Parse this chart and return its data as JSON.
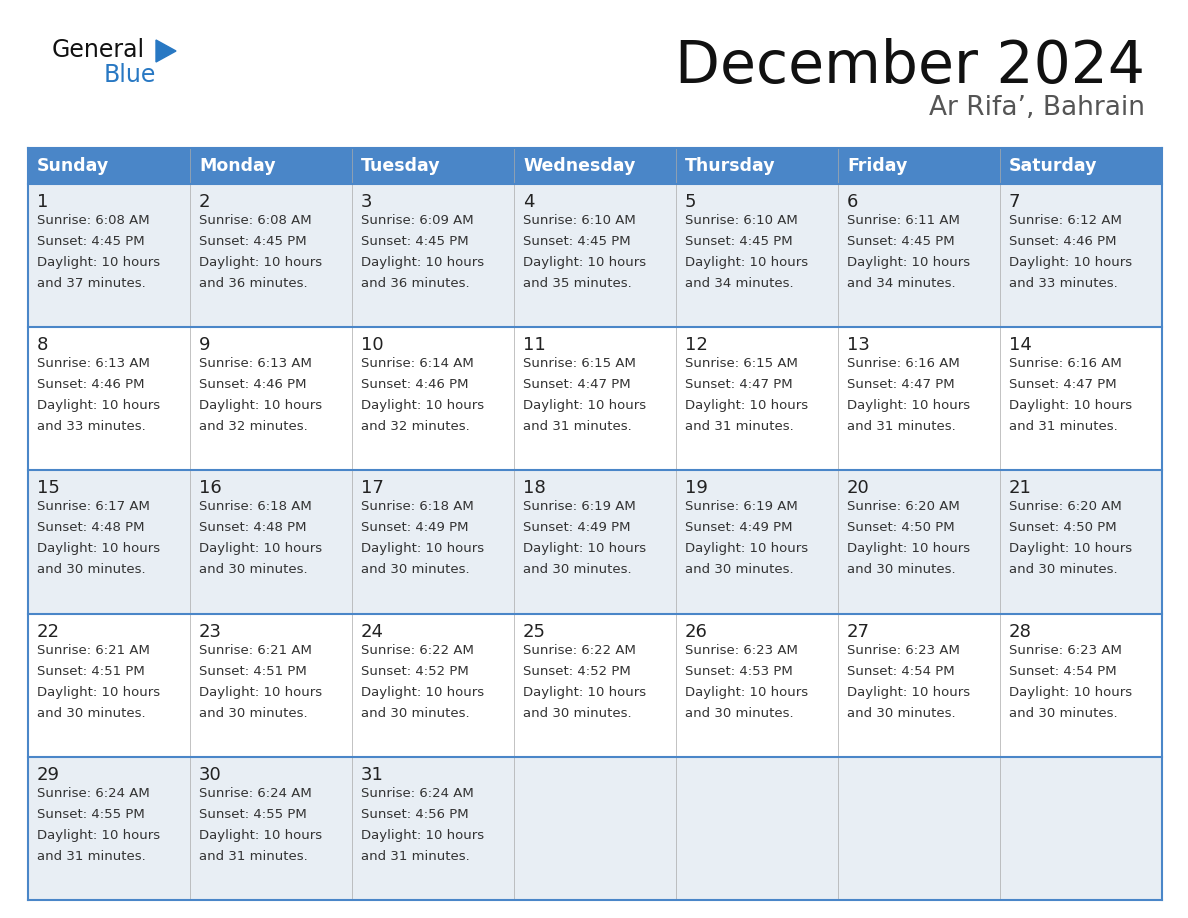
{
  "title": "December 2024",
  "subtitle": "Ar Rifa’, Bahrain",
  "days_of_week": [
    "Sunday",
    "Monday",
    "Tuesday",
    "Wednesday",
    "Thursday",
    "Friday",
    "Saturday"
  ],
  "header_bg": "#4a86c8",
  "header_text": "#ffffff",
  "cell_bg_odd": "#e8eef4",
  "cell_bg_even": "#ffffff",
  "border_color": "#4a86c8",
  "separator_color": "#4a86c8",
  "day_number_color": "#222222",
  "cell_text_color": "#333333",
  "title_color": "#111111",
  "subtitle_color": "#555555",
  "logo_blue": "#2878c3",
  "logo_dark": "#111111",
  "calendar_data": [
    [
      {
        "day": 1,
        "sunrise": "6:08 AM",
        "sunset": "4:45 PM",
        "daylight_hrs": 10,
        "daylight_min": 37
      },
      {
        "day": 2,
        "sunrise": "6:08 AM",
        "sunset": "4:45 PM",
        "daylight_hrs": 10,
        "daylight_min": 36
      },
      {
        "day": 3,
        "sunrise": "6:09 AM",
        "sunset": "4:45 PM",
        "daylight_hrs": 10,
        "daylight_min": 36
      },
      {
        "day": 4,
        "sunrise": "6:10 AM",
        "sunset": "4:45 PM",
        "daylight_hrs": 10,
        "daylight_min": 35
      },
      {
        "day": 5,
        "sunrise": "6:10 AM",
        "sunset": "4:45 PM",
        "daylight_hrs": 10,
        "daylight_min": 34
      },
      {
        "day": 6,
        "sunrise": "6:11 AM",
        "sunset": "4:45 PM",
        "daylight_hrs": 10,
        "daylight_min": 34
      },
      {
        "day": 7,
        "sunrise": "6:12 AM",
        "sunset": "4:46 PM",
        "daylight_hrs": 10,
        "daylight_min": 33
      }
    ],
    [
      {
        "day": 8,
        "sunrise": "6:13 AM",
        "sunset": "4:46 PM",
        "daylight_hrs": 10,
        "daylight_min": 33
      },
      {
        "day": 9,
        "sunrise": "6:13 AM",
        "sunset": "4:46 PM",
        "daylight_hrs": 10,
        "daylight_min": 32
      },
      {
        "day": 10,
        "sunrise": "6:14 AM",
        "sunset": "4:46 PM",
        "daylight_hrs": 10,
        "daylight_min": 32
      },
      {
        "day": 11,
        "sunrise": "6:15 AM",
        "sunset": "4:47 PM",
        "daylight_hrs": 10,
        "daylight_min": 31
      },
      {
        "day": 12,
        "sunrise": "6:15 AM",
        "sunset": "4:47 PM",
        "daylight_hrs": 10,
        "daylight_min": 31
      },
      {
        "day": 13,
        "sunrise": "6:16 AM",
        "sunset": "4:47 PM",
        "daylight_hrs": 10,
        "daylight_min": 31
      },
      {
        "day": 14,
        "sunrise": "6:16 AM",
        "sunset": "4:47 PM",
        "daylight_hrs": 10,
        "daylight_min": 31
      }
    ],
    [
      {
        "day": 15,
        "sunrise": "6:17 AM",
        "sunset": "4:48 PM",
        "daylight_hrs": 10,
        "daylight_min": 30
      },
      {
        "day": 16,
        "sunrise": "6:18 AM",
        "sunset": "4:48 PM",
        "daylight_hrs": 10,
        "daylight_min": 30
      },
      {
        "day": 17,
        "sunrise": "6:18 AM",
        "sunset": "4:49 PM",
        "daylight_hrs": 10,
        "daylight_min": 30
      },
      {
        "day": 18,
        "sunrise": "6:19 AM",
        "sunset": "4:49 PM",
        "daylight_hrs": 10,
        "daylight_min": 30
      },
      {
        "day": 19,
        "sunrise": "6:19 AM",
        "sunset": "4:49 PM",
        "daylight_hrs": 10,
        "daylight_min": 30
      },
      {
        "day": 20,
        "sunrise": "6:20 AM",
        "sunset": "4:50 PM",
        "daylight_hrs": 10,
        "daylight_min": 30
      },
      {
        "day": 21,
        "sunrise": "6:20 AM",
        "sunset": "4:50 PM",
        "daylight_hrs": 10,
        "daylight_min": 30
      }
    ],
    [
      {
        "day": 22,
        "sunrise": "6:21 AM",
        "sunset": "4:51 PM",
        "daylight_hrs": 10,
        "daylight_min": 30
      },
      {
        "day": 23,
        "sunrise": "6:21 AM",
        "sunset": "4:51 PM",
        "daylight_hrs": 10,
        "daylight_min": 30
      },
      {
        "day": 24,
        "sunrise": "6:22 AM",
        "sunset": "4:52 PM",
        "daylight_hrs": 10,
        "daylight_min": 30
      },
      {
        "day": 25,
        "sunrise": "6:22 AM",
        "sunset": "4:52 PM",
        "daylight_hrs": 10,
        "daylight_min": 30
      },
      {
        "day": 26,
        "sunrise": "6:23 AM",
        "sunset": "4:53 PM",
        "daylight_hrs": 10,
        "daylight_min": 30
      },
      {
        "day": 27,
        "sunrise": "6:23 AM",
        "sunset": "4:54 PM",
        "daylight_hrs": 10,
        "daylight_min": 30
      },
      {
        "day": 28,
        "sunrise": "6:23 AM",
        "sunset": "4:54 PM",
        "daylight_hrs": 10,
        "daylight_min": 30
      }
    ],
    [
      {
        "day": 29,
        "sunrise": "6:24 AM",
        "sunset": "4:55 PM",
        "daylight_hrs": 10,
        "daylight_min": 31
      },
      {
        "day": 30,
        "sunrise": "6:24 AM",
        "sunset": "4:55 PM",
        "daylight_hrs": 10,
        "daylight_min": 31
      },
      {
        "day": 31,
        "sunrise": "6:24 AM",
        "sunset": "4:56 PM",
        "daylight_hrs": 10,
        "daylight_min": 31
      },
      null,
      null,
      null,
      null
    ]
  ]
}
